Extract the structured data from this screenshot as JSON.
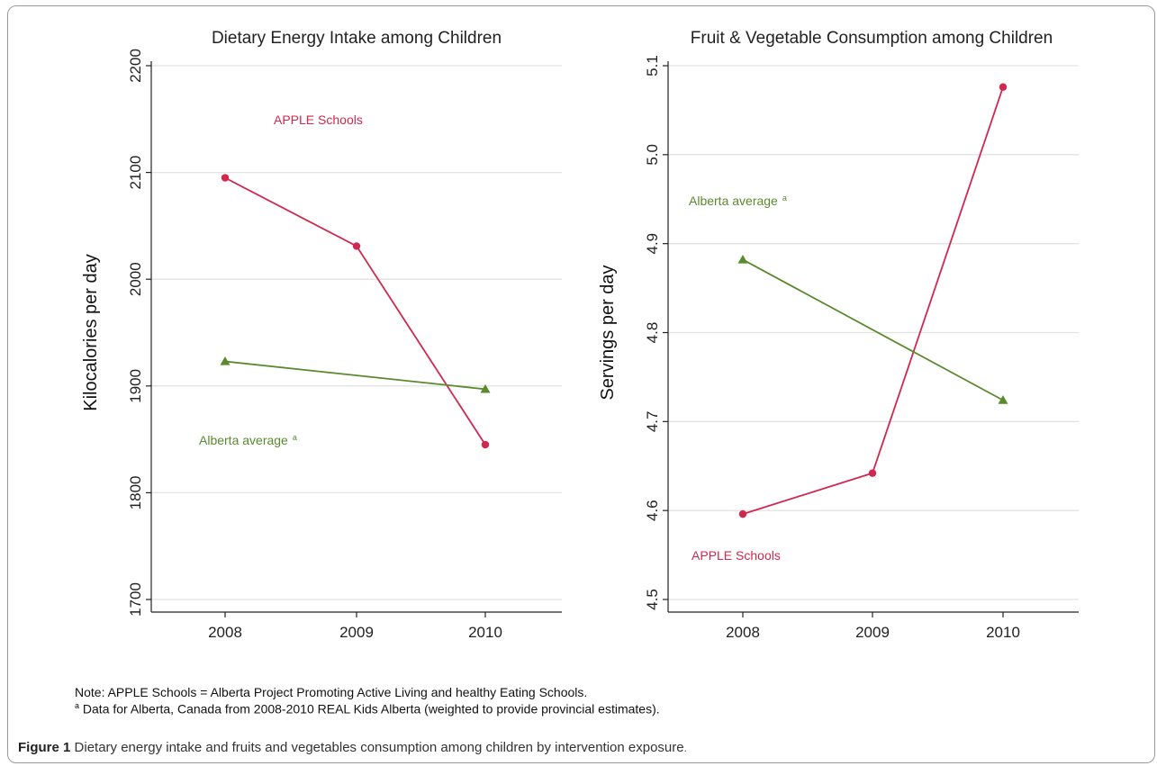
{
  "chart_data": [
    {
      "type": "line",
      "title": "Dietary Energy Intake among Children",
      "xlabel": "",
      "ylabel": "Kilocalories per day",
      "categories": [
        "2008",
        "2009",
        "2010"
      ],
      "ylim": [
        1700,
        2200
      ],
      "yticks": [
        "1700",
        "1800",
        "1900",
        "2000",
        "2100",
        "2200"
      ],
      "grid": true,
      "series": [
        {
          "name": "APPLE Schools",
          "values": [
            2095,
            2031,
            1845
          ],
          "color": "#d0284f",
          "marker": "circle"
        },
        {
          "name": "Alberta average",
          "values": [
            1923,
            null,
            1897
          ],
          "color": "#5a8a2e",
          "marker": "triangle"
        }
      ],
      "annotations": [
        {
          "text": "APPLE Schools",
          "superscript": "",
          "color": "#d0284f"
        },
        {
          "text": "Alberta average",
          "superscript": "a",
          "color": "#5a8a2e"
        }
      ]
    },
    {
      "type": "line",
      "title": "Fruit & Vegetable Consumption among Children",
      "xlabel": "",
      "ylabel": "Servings per day",
      "categories": [
        "2008",
        "2009",
        "2010"
      ],
      "ylim": [
        4.5,
        5.1
      ],
      "yticks": [
        "4.5",
        "4.6",
        "4.7",
        "4.8",
        "4.9",
        "5.0",
        "5.1"
      ],
      "grid": true,
      "series": [
        {
          "name": "APPLE Schools",
          "values": [
            4.596,
            4.642,
            5.076
          ],
          "color": "#d0284f",
          "marker": "circle"
        },
        {
          "name": "Alberta average",
          "values": [
            4.882,
            null,
            4.724
          ],
          "color": "#5a8a2e",
          "marker": "triangle"
        }
      ],
      "annotations": [
        {
          "text": "Alberta average",
          "superscript": "a",
          "color": "#5a8a2e"
        },
        {
          "text": "APPLE Schools",
          "superscript": "",
          "color": "#d0284f"
        }
      ]
    }
  ],
  "notes": {
    "line1": "Note: APPLE Schools = Alberta Project Promoting Active Living and healthy Eating Schools.",
    "line2_sup": "a",
    "line2": " Data for Alberta, Canada from 2008-2010 REAL Kids Alberta (weighted to provide provincial estimates)."
  },
  "caption": {
    "label": "Figure 1",
    "text": " Dietary energy intake and fruits and vegetables consumption among children by intervention exposure",
    "end": "."
  }
}
